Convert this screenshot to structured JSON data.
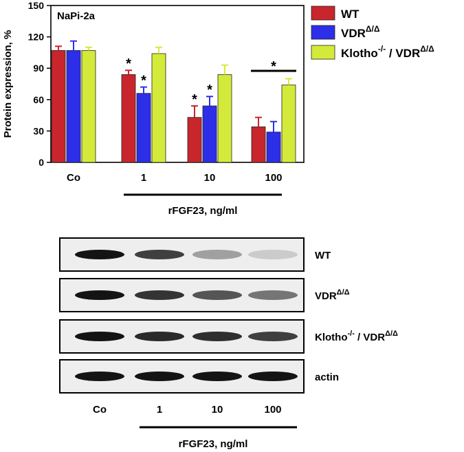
{
  "chart_data": {
    "type": "bar",
    "panel_label": "NaPi-2a",
    "ylabel": "Protein expression, %",
    "ylim": [
      0,
      150
    ],
    "yticks": [
      "0",
      "30",
      "60",
      "90",
      "120",
      "150"
    ],
    "categories": [
      "Co",
      "1",
      "10",
      "100"
    ],
    "xlabel": "rFGF23, ng/ml",
    "grid": false,
    "legend_position": "top-right",
    "series": [
      {
        "name": "WT",
        "name_base": "WT",
        "name_sup": "",
        "color": "#c8262c",
        "values": [
          107,
          84,
          43,
          34
        ],
        "errors": [
          4,
          4,
          11,
          9
        ]
      },
      {
        "name": "VDRΔ/Δ",
        "name_base": "VDR",
        "name_sup": "Δ/Δ",
        "color": "#2d2ee8",
        "values": [
          107,
          66,
          54,
          29
        ],
        "errors": [
          9,
          6,
          9,
          10
        ]
      },
      {
        "name": "Klotho-/- / VDRΔ/Δ",
        "name_base": "Klotho",
        "name_sup": "-/-",
        "name_mid": "/ VDR",
        "name_sup2": "Δ/Δ",
        "color": "#d4ea3a",
        "values": [
          107,
          104,
          84,
          74
        ],
        "errors": [
          3,
          6,
          9,
          6
        ]
      }
    ],
    "significance_marker": "*",
    "significant_bars": [
      [
        0,
        1
      ],
      [
        1,
        1
      ],
      [
        0,
        2
      ],
      [
        1,
        2
      ]
    ],
    "bracket_significance": {
      "category": 3,
      "label": "*"
    }
  },
  "blot": {
    "lanes": [
      "Co",
      "1",
      "10",
      "100"
    ],
    "xlabel": "rFGF23, ng/ml",
    "rows": [
      {
        "label_base": "WT",
        "label_sup": "",
        "label_mid": "",
        "label_sup2": "",
        "intensity": [
          1.0,
          0.8,
          0.35,
          0.15
        ]
      },
      {
        "label_base": "VDR",
        "label_sup": "Δ/Δ",
        "label_mid": "",
        "label_sup2": "",
        "intensity": [
          1.0,
          0.85,
          0.7,
          0.55
        ]
      },
      {
        "label_base": "Klotho",
        "label_sup": "-/-",
        "label_mid": "/ VDR",
        "label_sup2": "Δ/Δ",
        "intensity": [
          1.0,
          0.9,
          0.88,
          0.8
        ]
      },
      {
        "label_base": "actin",
        "label_sup": "",
        "label_mid": "",
        "label_sup2": "",
        "intensity": [
          1.0,
          1.0,
          1.0,
          1.0
        ]
      }
    ]
  }
}
